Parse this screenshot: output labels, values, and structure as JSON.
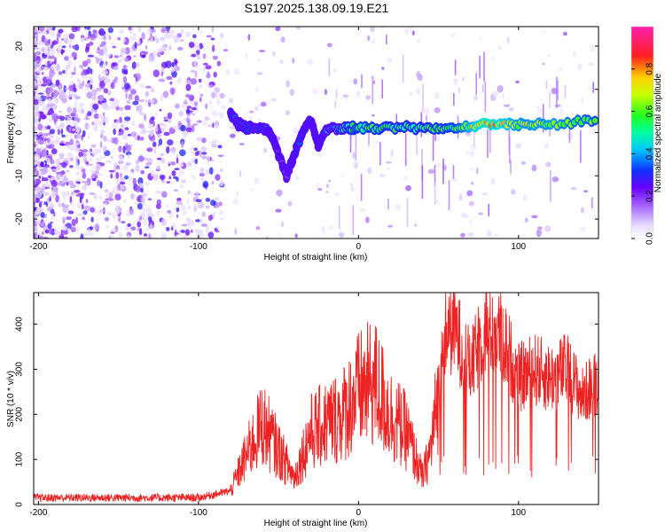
{
  "title": "S197.2025.138.09.19.E21",
  "chart_data": [
    {
      "type": "heatmap",
      "xlabel": "Height of straight line (km)",
      "ylabel": "Frequency (Hz)",
      "xlim": [
        -203,
        150
      ],
      "ylim": [
        -24.5,
        24.5
      ],
      "xticks": [
        -200,
        -100,
        0,
        100
      ],
      "yticks": [
        -20,
        -10,
        0,
        10,
        20
      ],
      "colorbar": {
        "label": "Normalized spectral amplitude",
        "range": [
          0,
          1
        ],
        "ticks": [
          0.0,
          0.2,
          0.4,
          0.6,
          0.8
        ]
      },
      "ridge": {
        "x": [
          -80,
          -75,
          -70,
          -60,
          -55,
          -50,
          -45,
          -40,
          -35,
          -30,
          -25,
          -20,
          -10,
          0,
          20,
          40,
          60,
          80,
          100,
          120,
          150
        ],
        "y": [
          4,
          2,
          1,
          1,
          0,
          -5,
          -10,
          -5,
          0,
          3,
          -3,
          1,
          1,
          1,
          1,
          1,
          1,
          2,
          2,
          2,
          3
        ],
        "amplitude": [
          0.35,
          0.4,
          0.35,
          0.4,
          0.3,
          0.25,
          0.2,
          0.3,
          0.35,
          0.3,
          0.25,
          0.45,
          0.5,
          0.6,
          0.55,
          0.55,
          0.6,
          0.85,
          0.7,
          0.7,
          0.6
        ]
      }
    },
    {
      "type": "line",
      "xlabel": "Height of straight line (km)",
      "ylabel": "SNR (10 * v/v)",
      "xlim": [
        -203,
        150
      ],
      "ylim": [
        0,
        470
      ],
      "xticks": [
        -200,
        -100,
        0,
        100
      ],
      "yticks": [
        0,
        100,
        200,
        300,
        400
      ],
      "series": [
        {
          "color": "#ee2222",
          "x": [
            -200,
            -150,
            -100,
            -80,
            -70,
            -60,
            -50,
            -40,
            -30,
            -20,
            -10,
            0,
            10,
            20,
            30,
            40,
            45,
            50,
            55,
            60,
            70,
            80,
            90,
            100,
            110,
            120,
            130,
            140,
            150
          ],
          "y": [
            15,
            15,
            15,
            30,
            110,
            180,
            120,
            60,
            160,
            180,
            200,
            250,
            270,
            200,
            160,
            60,
            120,
            250,
            390,
            390,
            300,
            400,
            370,
            280,
            300,
            280,
            300,
            240,
            280
          ]
        }
      ]
    }
  ]
}
